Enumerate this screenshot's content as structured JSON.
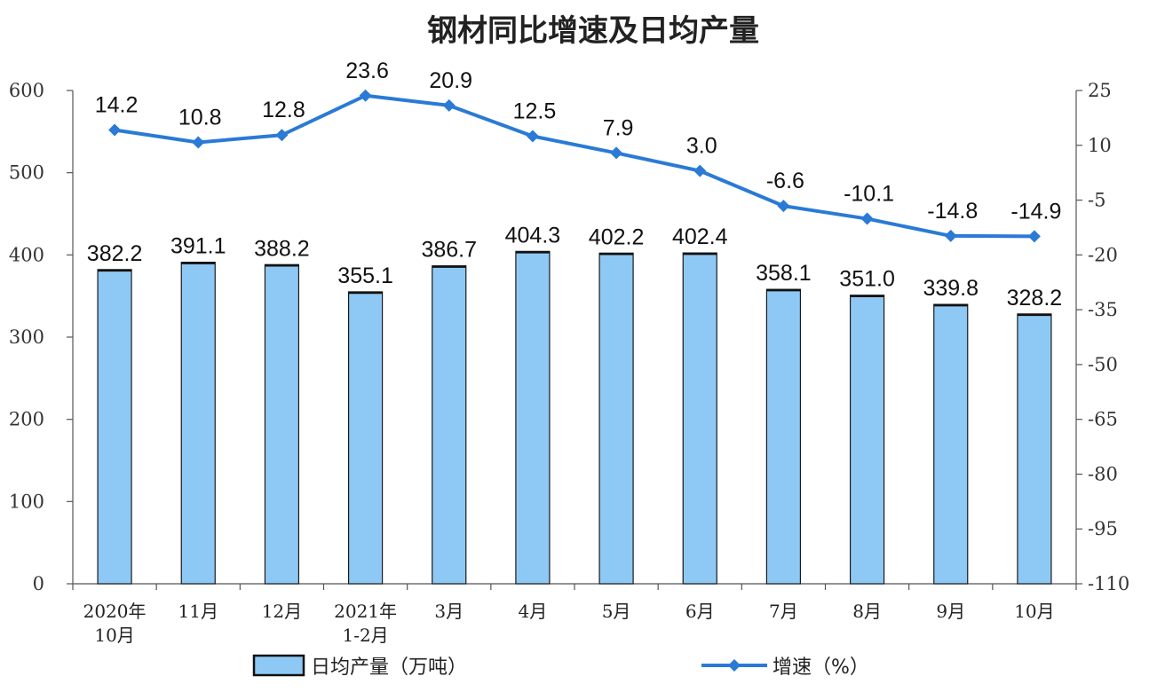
{
  "chart_data": {
    "type": "bar",
    "title": "钢材同比增速及日均产量",
    "categories": [
      [
        "2020年",
        "10月"
      ],
      [
        "11月"
      ],
      [
        "12月"
      ],
      [
        "2021年",
        "1-2月"
      ],
      [
        "3月"
      ],
      [
        "4月"
      ],
      [
        "5月"
      ],
      [
        "6月"
      ],
      [
        "7月"
      ],
      [
        "8月"
      ],
      [
        "9月"
      ],
      [
        "10月"
      ]
    ],
    "series": [
      {
        "name": "日均产量（万吨）",
        "type": "bar",
        "axis": "left",
        "color": "#8ec9f5",
        "values": [
          382.2,
          391.1,
          388.2,
          355.1,
          386.7,
          404.3,
          402.2,
          402.4,
          358.1,
          351.0,
          339.8,
          328.2
        ]
      },
      {
        "name": "增速（%）",
        "type": "line",
        "axis": "right",
        "color": "#2a7ad6",
        "values": [
          14.2,
          10.8,
          12.8,
          23.6,
          20.9,
          12.5,
          7.9,
          3.0,
          -6.6,
          -10.1,
          -14.8,
          -14.9
        ]
      }
    ],
    "y_left": {
      "min": 0,
      "max": 600,
      "ticks": [
        0,
        100,
        200,
        300,
        400,
        500,
        600
      ]
    },
    "y_right": {
      "min": -110,
      "max": 25,
      "ticks": [
        25,
        10,
        -5,
        -20,
        -35,
        -50,
        -65,
        -80,
        -95,
        -110
      ]
    },
    "grid": false,
    "legend": "bottom"
  }
}
